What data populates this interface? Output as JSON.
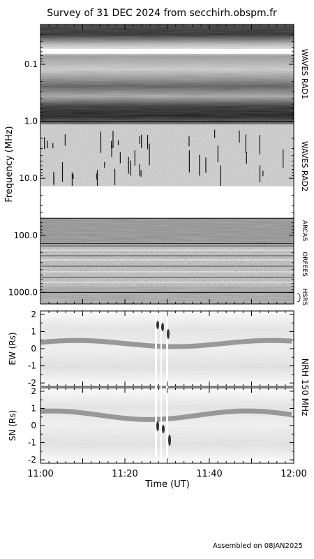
{
  "chart_data": {
    "type": "heatmap",
    "title": "Survey of 31 DEC 2024 from secchirh.obspm.fr",
    "footer": "Assembled on 08JAN2025",
    "time_axis": {
      "label": "Time (UT)",
      "range": [
        "11:00",
        "12:00"
      ],
      "tick_labels": [
        "11:00",
        "11:20",
        "11:40",
        "12:00"
      ]
    },
    "spectrum": {
      "ylabel": "Frequency (MHz)",
      "scale": "log",
      "inverted": true,
      "ylim": [
        0.02,
        1600
      ],
      "tick_labels": [
        "0.1",
        "1.0",
        "10.0",
        "100.0",
        "1000.0"
      ],
      "instruments": [
        {
          "label": "WAVES RAD1",
          "freq_range": [
            0.02,
            1.0
          ]
        },
        {
          "label": "WAVES RAD2",
          "freq_range": [
            1.0,
            13.8
          ]
        },
        {
          "label": "ARCAS",
          "freq_range": [
            50,
            110
          ]
        },
        {
          "label": "ORFEES",
          "freq_range": [
            140,
            1000
          ]
        },
        {
          "label": "HSRS",
          "freq_range": [
            1000,
            1600
          ]
        }
      ],
      "data_gap": [
        13.8,
        50
      ]
    },
    "nrh": {
      "label": "NRH 150 MHz",
      "panels": [
        {
          "ylabel": "EW (Rs)",
          "ylim": [
            -2.2,
            2.2
          ],
          "tick_labels": [
            "2",
            "1",
            "0",
            "-1",
            "-2"
          ]
        },
        {
          "ylabel": "SN (Rs)",
          "ylim": [
            -2.2,
            2.2
          ],
          "tick_labels": [
            "2",
            "1",
            "0",
            "-1",
            "-2"
          ]
        }
      ]
    }
  }
}
